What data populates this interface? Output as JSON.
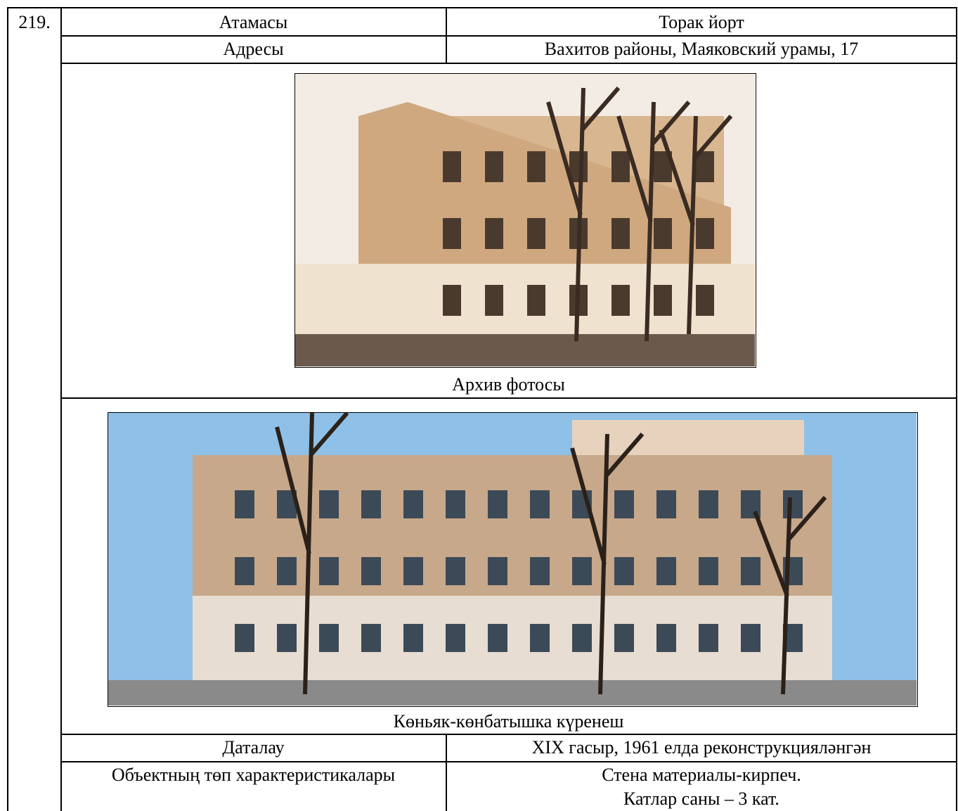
{
  "entry": {
    "number": "219.",
    "rows": [
      {
        "label": "Атамасы",
        "value": "Торак йорт"
      },
      {
        "label": "Адресы",
        "value": "Вахитов районы, Маяковский урамы, 17"
      }
    ],
    "photos": [
      {
        "caption": "Архив фотосы"
      },
      {
        "caption": "Көньяк-көнбатышка күренеш"
      }
    ],
    "details": [
      {
        "label": "Даталау",
        "value": "XIX гасыр, 1961 елда реконструкцияләнгән"
      },
      {
        "label": "Объектның төп характеристикалары",
        "lines": [
          "Стена материалы-кирпеч.",
          "Катлар саны – 3 кат."
        ]
      }
    ]
  }
}
